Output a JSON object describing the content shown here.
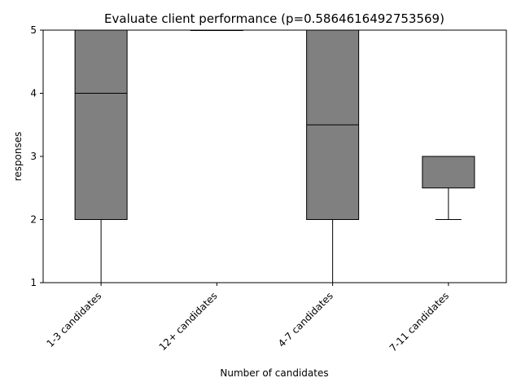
{
  "chart_data": {
    "type": "box",
    "title": "Evaluate client performance (p=0.5864616492753569)",
    "xlabel": "Number of candidates",
    "ylabel": "responses",
    "ylim": [
      1,
      5
    ],
    "yticks": [
      1,
      2,
      3,
      4,
      5
    ],
    "categories": [
      "1-3 candidates",
      "12+ candidates",
      "4-7 candidates",
      "7-11 candidates"
    ],
    "boxes": [
      {
        "category": "1-3 candidates",
        "whisker_low": 1,
        "q1": 2,
        "median": 4,
        "q3": 5,
        "whisker_high": 5
      },
      {
        "category": "12+ candidates",
        "whisker_low": 5,
        "q1": 5,
        "median": 5,
        "q3": 5,
        "whisker_high": 5
      },
      {
        "category": "4-7 candidates",
        "whisker_low": 1,
        "q1": 2,
        "median": 3.5,
        "q3": 5,
        "whisker_high": 5
      },
      {
        "category": "7-11 candidates",
        "whisker_low": 2,
        "q1": 2.5,
        "median": 3,
        "q3": 3,
        "whisker_high": 3
      }
    ],
    "box_color": "#808080",
    "line_color": "#000000",
    "grid": false,
    "tick_rotation": 45
  }
}
